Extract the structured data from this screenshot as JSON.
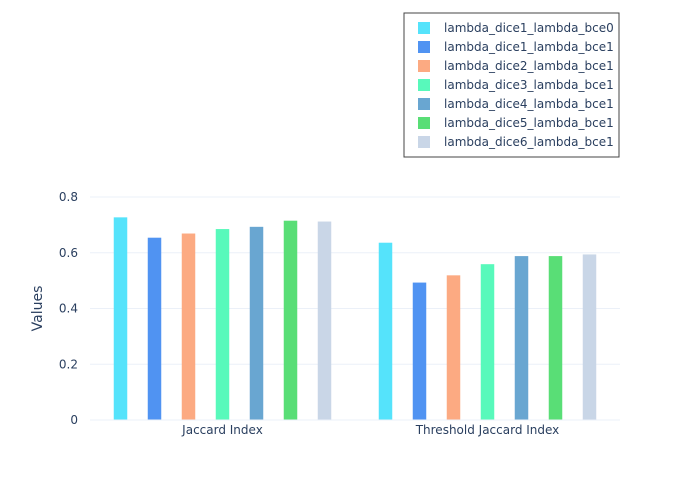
{
  "chart_data": {
    "type": "bar",
    "title": "",
    "xlabel": "",
    "ylabel": "Values",
    "ylim": [
      0,
      0.8
    ],
    "yticks": [
      0,
      0.2,
      0.4,
      0.6,
      0.8
    ],
    "ytick_labels": [
      "0",
      "0.2",
      "0.4",
      "0.6",
      "0.8"
    ],
    "grid": true,
    "legend_position": "top-right",
    "categories": [
      "Jaccard Index",
      "Threshold Jaccard Index"
    ],
    "series": [
      {
        "name": "lambda_dice1_lambda_bce0",
        "color": "#55e3fb",
        "values": [
          0.727,
          0.636
        ]
      },
      {
        "name": "lambda_dice1_lambda_bce1",
        "color": "#5093f2",
        "values": [
          0.654,
          0.493
        ]
      },
      {
        "name": "lambda_dice2_lambda_bce1",
        "color": "#fcaa82",
        "values": [
          0.669,
          0.519
        ]
      },
      {
        "name": "lambda_dice3_lambda_bce1",
        "color": "#58f9bb",
        "values": [
          0.685,
          0.559
        ]
      },
      {
        "name": "lambda_dice4_lambda_bce1",
        "color": "#69a6d1",
        "values": [
          0.693,
          0.588
        ]
      },
      {
        "name": "lambda_dice5_lambda_bce1",
        "color": "#59de76",
        "values": [
          0.715,
          0.588
        ]
      },
      {
        "name": "lambda_dice6_lambda_bce1",
        "color": "#c9d6e7",
        "values": [
          0.712,
          0.594
        ]
      }
    ]
  }
}
